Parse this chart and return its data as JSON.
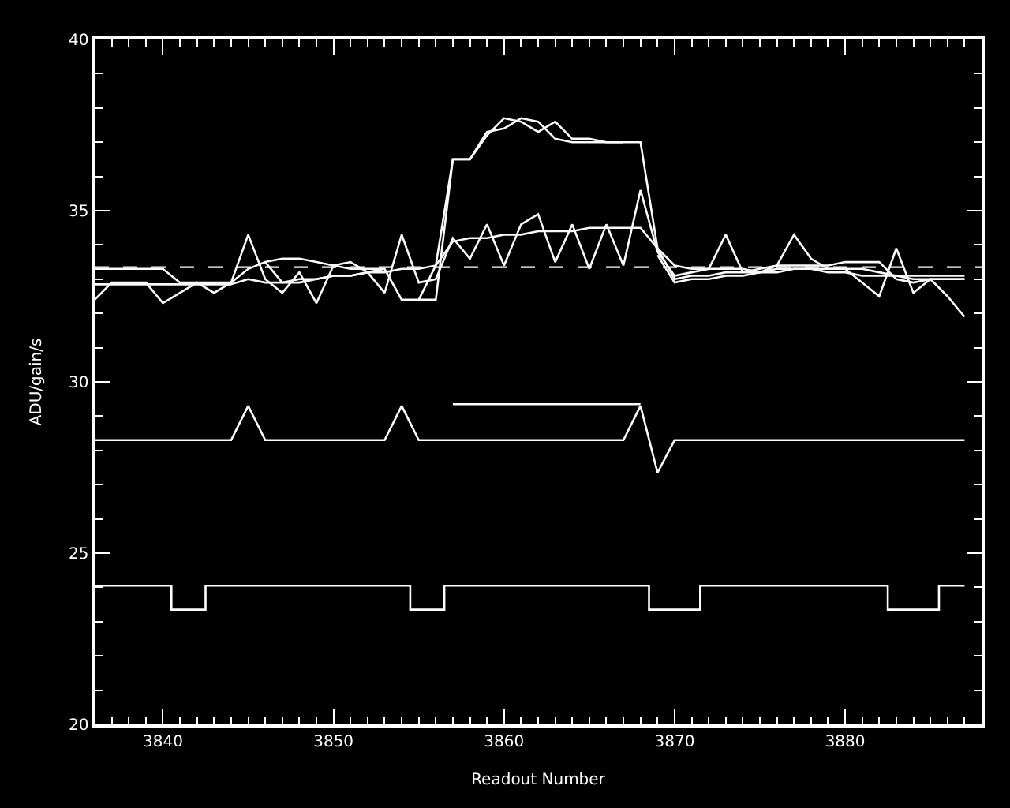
{
  "chart_data": {
    "type": "line",
    "xlabel": "Readout Number",
    "ylabel": "ADU/gain/s",
    "x": [
      3836,
      3837,
      3838,
      3839,
      3840,
      3841,
      3842,
      3843,
      3844,
      3845,
      3846,
      3847,
      3848,
      3849,
      3850,
      3851,
      3852,
      3853,
      3854,
      3855,
      3856,
      3857,
      3858,
      3859,
      3860,
      3861,
      3862,
      3863,
      3864,
      3865,
      3866,
      3867,
      3868,
      3869,
      3870,
      3871,
      3872,
      3873,
      3874,
      3875,
      3876,
      3877,
      3878,
      3879,
      3880,
      3881,
      3882,
      3883,
      3884,
      3885,
      3886,
      3887
    ],
    "series": [
      {
        "type": "step",
        "color": "#ffffff",
        "values": [
          24.05,
          24.05,
          24.05,
          24.05,
          24.05,
          23.35,
          23.35,
          24.05,
          24.05,
          24.05,
          24.05,
          24.05,
          24.05,
          24.05,
          24.05,
          24.05,
          24.05,
          24.05,
          24.05,
          23.35,
          23.35,
          24.05,
          24.05,
          24.05,
          24.05,
          24.05,
          24.05,
          24.05,
          24.05,
          24.05,
          24.05,
          24.05,
          24.05,
          23.35,
          23.35,
          23.35,
          24.05,
          24.05,
          24.05,
          24.05,
          24.05,
          24.05,
          24.05,
          24.05,
          24.05,
          24.05,
          24.05,
          23.35,
          23.35,
          23.35,
          24.05,
          24.05
        ]
      },
      {
        "color": "#fefefe",
        "values": [
          28.3,
          28.3,
          28.3,
          28.3,
          28.3,
          28.3,
          28.3,
          28.3,
          28.3,
          29.3,
          28.3,
          28.3,
          28.3,
          28.3,
          28.3,
          28.3,
          28.3,
          28.3,
          29.3,
          28.3,
          28.3,
          28.3,
          28.3,
          28.3,
          28.3,
          28.3,
          28.3,
          28.3,
          28.3,
          28.3,
          28.3,
          28.3,
          29.3,
          27.35,
          28.3,
          28.3,
          28.3,
          28.3,
          28.3,
          28.3,
          28.3,
          28.3,
          28.3,
          28.3,
          28.3,
          28.3,
          28.3,
          28.3,
          28.3,
          28.3,
          28.3,
          28.3
        ]
      },
      {
        "color": "#fdfdfd",
        "values": [
          null,
          null,
          null,
          null,
          null,
          null,
          null,
          null,
          null,
          null,
          null,
          null,
          null,
          null,
          null,
          null,
          null,
          null,
          null,
          null,
          null,
          29.35,
          29.35,
          29.35,
          29.35,
          29.35,
          29.35,
          29.35,
          29.35,
          29.35,
          29.35,
          29.35,
          29.35,
          null,
          null,
          null,
          null,
          null,
          null,
          null,
          null,
          null,
          null,
          null,
          null,
          null,
          null,
          null,
          null,
          null,
          null,
          null
        ]
      },
      {
        "color": "#fcfcfc",
        "values": [
          33.3,
          33.3,
          33.3,
          33.3,
          33.3,
          32.9,
          32.9,
          32.9,
          32.9,
          33.3,
          33.5,
          33.6,
          33.6,
          33.5,
          33.4,
          33.3,
          33.3,
          33.3,
          32.4,
          32.4,
          33.4,
          36.5,
          36.5,
          37.3,
          37.4,
          37.7,
          37.6,
          37.1,
          37.0,
          37.0,
          37.0,
          37.0,
          37.0,
          33.9,
          33.4,
          33.3,
          33.3,
          33.3,
          33.3,
          33.2,
          33.4,
          33.4,
          33.4,
          33.4,
          33.5,
          33.5,
          33.5,
          33.0,
          32.9,
          33.0,
          33.0,
          33.0
        ]
      },
      {
        "color": "#fbfbfb",
        "values": [
          32.85,
          32.85,
          32.85,
          32.85,
          32.85,
          32.85,
          32.85,
          32.85,
          32.85,
          null,
          33.5,
          32.9,
          32.9,
          33.0,
          33.1,
          33.1,
          33.2,
          33.3,
          null,
          32.4,
          32.4,
          36.5,
          36.5,
          37.2,
          37.7,
          37.6,
          37.3,
          37.6,
          37.1,
          37.1,
          37.0,
          37.0,
          null,
          33.7,
          32.9,
          33.0,
          33.0,
          33.1,
          33.1,
          33.2,
          33.2,
          33.3,
          33.3,
          33.3,
          33.3,
          33.3,
          33.2,
          33.1,
          33.0,
          33.0,
          33.0,
          33.0
        ]
      },
      {
        "color": "#fafafa",
        "values": [
          32.4,
          32.9,
          32.9,
          32.9,
          32.3,
          32.6,
          32.9,
          32.6,
          32.9,
          34.3,
          33.0,
          32.6,
          33.2,
          32.3,
          33.4,
          33.5,
          33.2,
          32.6,
          34.3,
          32.9,
          33.0,
          34.2,
          33.6,
          34.6,
          33.4,
          34.6,
          34.9,
          33.5,
          34.6,
          33.3,
          34.6,
          33.4,
          35.6,
          33.8,
          33.1,
          33.2,
          33.3,
          34.3,
          33.2,
          33.3,
          33.4,
          34.3,
          33.6,
          33.3,
          33.3,
          32.9,
          32.5,
          33.9,
          32.6,
          33.0,
          32.5,
          31.9
        ]
      },
      {
        "color": "#f9f9f9",
        "values": [
          32.85,
          32.85,
          32.85,
          32.85,
          32.85,
          32.85,
          32.85,
          32.85,
          32.85,
          33.0,
          32.9,
          32.9,
          33.0,
          33.0,
          33.1,
          33.1,
          33.2,
          33.2,
          33.3,
          33.3,
          33.4,
          34.1,
          34.2,
          34.2,
          34.3,
          34.3,
          34.4,
          34.4,
          34.4,
          34.5,
          34.5,
          34.5,
          34.5,
          33.9,
          33.0,
          33.1,
          33.1,
          33.2,
          33.2,
          33.2,
          33.3,
          33.3,
          33.3,
          33.2,
          33.2,
          33.1,
          33.1,
          33.1,
          33.1,
          33.1,
          33.1,
          33.1
        ]
      }
    ],
    "ref_lines": [
      {
        "axis": "y",
        "value": 33.35,
        "color": "#ffffff",
        "line_style": "dashed"
      }
    ],
    "xlim": [
      3836,
      3888
    ],
    "xticks": [
      {
        "value": 3837,
        "label": null
      },
      {
        "value": 3838,
        "label": null
      },
      {
        "value": 3839,
        "label": null
      },
      3840,
      {
        "value": 3841,
        "label": null
      },
      {
        "value": 3842,
        "label": null
      },
      {
        "value": 3843,
        "label": null
      },
      {
        "value": 3844,
        "label": null
      },
      {
        "value": 3845,
        "label": null
      },
      {
        "value": 3846,
        "label": null
      },
      {
        "value": 3847,
        "label": null
      },
      {
        "value": 3848,
        "label": null
      },
      {
        "value": 3849,
        "label": null
      },
      3850,
      {
        "value": 3851,
        "label": null
      },
      {
        "value": 3852,
        "label": null
      },
      {
        "value": 3853,
        "label": null
      },
      {
        "value": 3854,
        "label": null
      },
      {
        "value": 3855,
        "label": null
      },
      {
        "value": 3856,
        "label": null
      },
      {
        "value": 3857,
        "label": null
      },
      {
        "value": 3858,
        "label": null
      },
      {
        "value": 3859,
        "label": null
      },
      3860,
      {
        "value": 3861,
        "label": null
      },
      {
        "value": 3862,
        "label": null
      },
      {
        "value": 3863,
        "label": null
      },
      {
        "value": 3864,
        "label": null
      },
      {
        "value": 3865,
        "label": null
      },
      {
        "value": 3866,
        "label": null
      },
      {
        "value": 3867,
        "label": null
      },
      {
        "value": 3868,
        "label": null
      },
      {
        "value": 3869,
        "label": null
      },
      3870,
      {
        "value": 3871,
        "label": null
      },
      {
        "value": 3872,
        "label": null
      },
      {
        "value": 3873,
        "label": null
      },
      {
        "value": 3874,
        "label": null
      },
      {
        "value": 3875,
        "label": null
      },
      {
        "value": 3876,
        "label": null
      },
      {
        "value": 3877,
        "label": null
      },
      {
        "value": 3878,
        "label": null
      },
      {
        "value": 3879,
        "label": null
      },
      3880,
      {
        "value": 3881,
        "label": null
      },
      {
        "value": 3882,
        "label": null
      },
      {
        "value": 3883,
        "label": null
      },
      {
        "value": 3884,
        "label": null
      },
      {
        "value": 3885,
        "label": null
      },
      {
        "value": 3886,
        "label": null
      },
      {
        "value": 3887,
        "label": null
      }
    ],
    "ylim": [
      20,
      40
    ],
    "yticks": [
      20,
      {
        "value": 21,
        "label": null
      },
      {
        "value": 22,
        "label": null
      },
      {
        "value": 23,
        "label": null
      },
      {
        "value": 24,
        "label": null
      },
      25,
      {
        "value": 26,
        "label": null
      },
      {
        "value": 27,
        "label": null
      },
      {
        "value": 28,
        "label": null
      },
      {
        "value": 29,
        "label": null
      },
      30,
      {
        "value": 31,
        "label": null
      },
      {
        "value": 32,
        "label": null
      },
      {
        "value": 33,
        "label": null
      },
      {
        "value": 34,
        "label": null
      },
      35,
      {
        "value": 36,
        "label": null
      },
      {
        "value": 37,
        "label": null
      },
      {
        "value": 38,
        "label": null
      },
      {
        "value": 39,
        "label": null
      },
      40
    ],
    "grid": false,
    "marker": "none",
    "line_style": "solid"
  }
}
